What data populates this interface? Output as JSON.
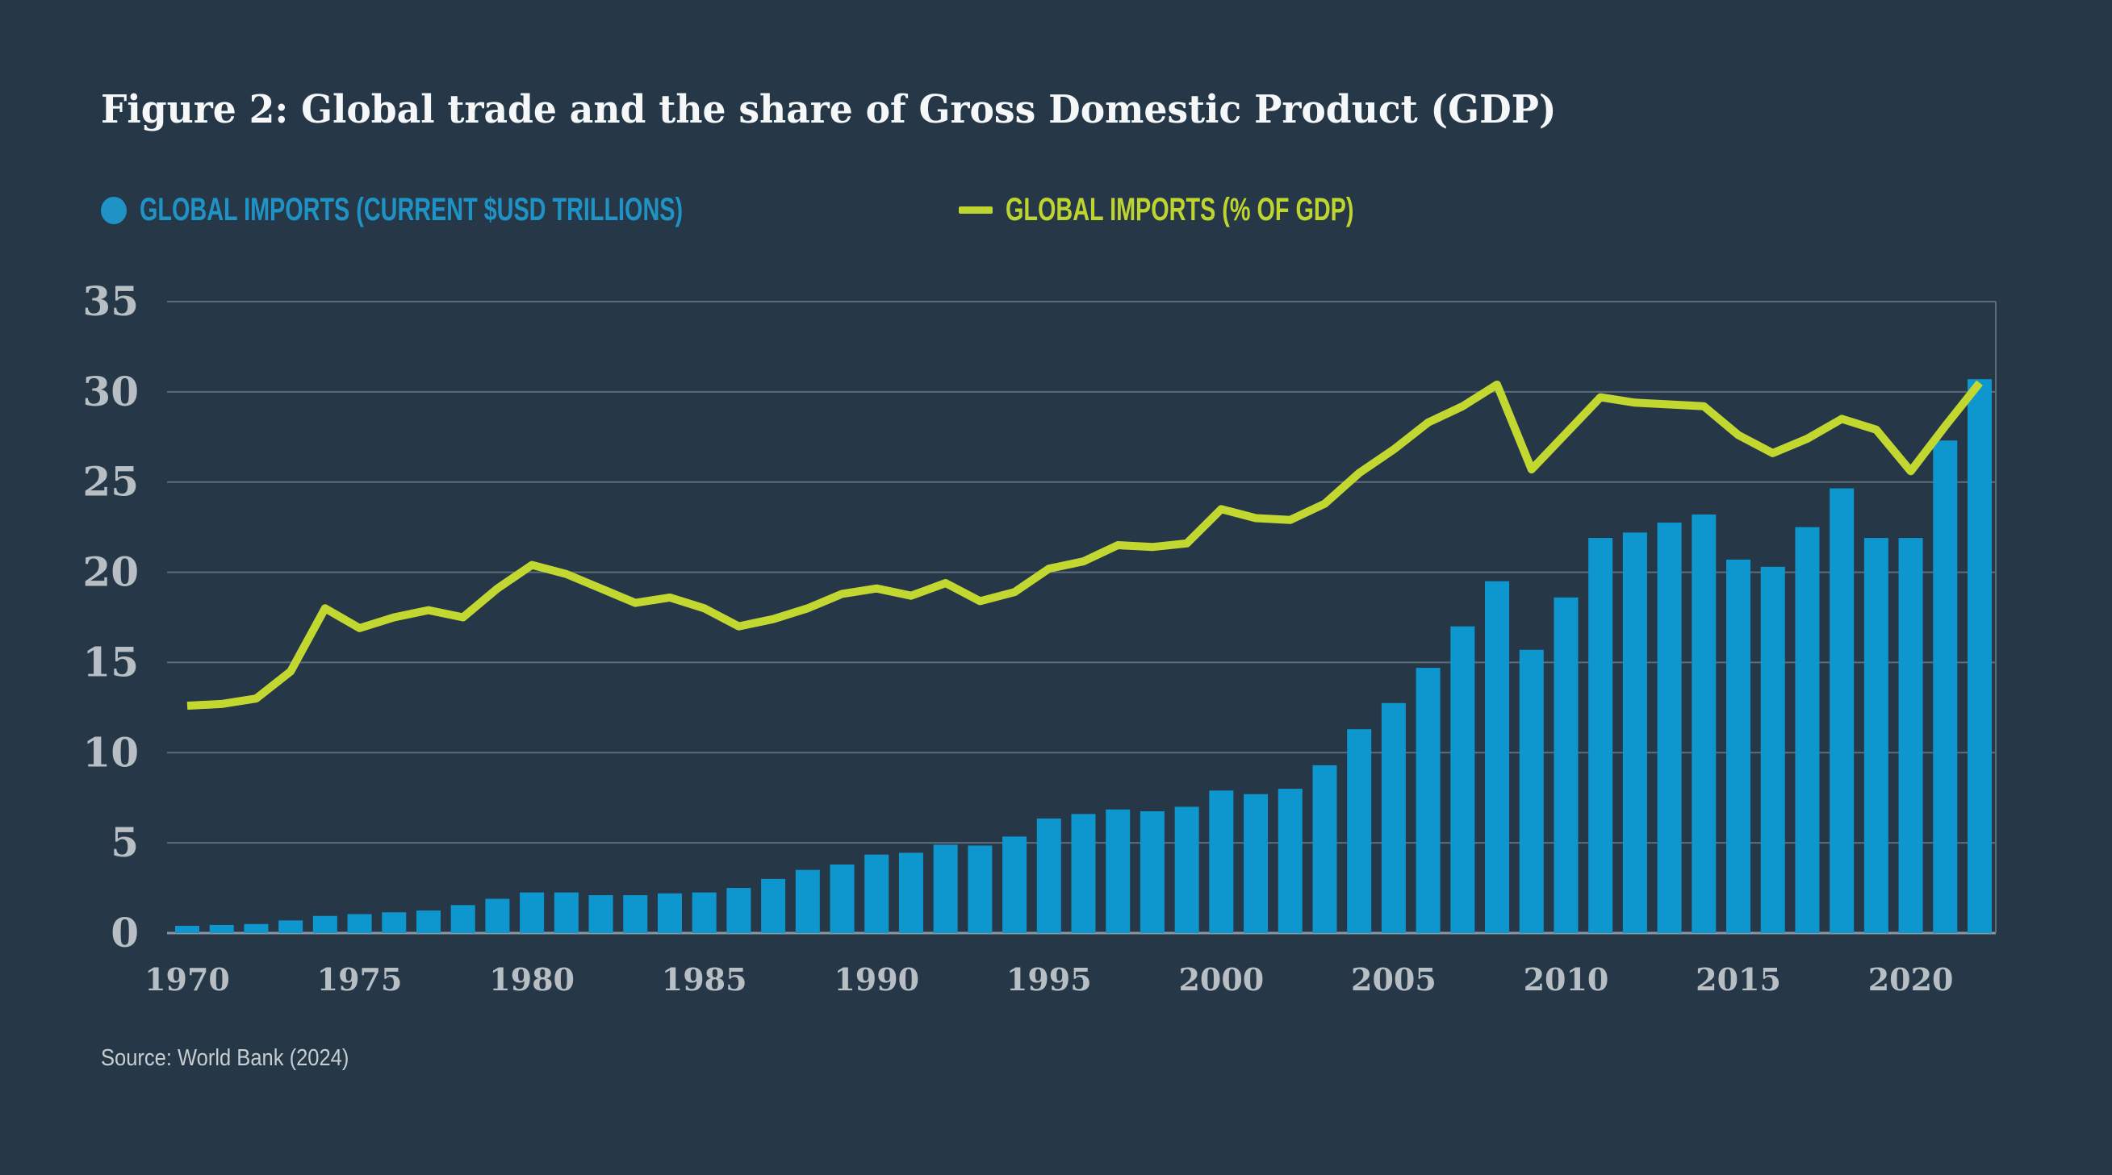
{
  "title": "Figure 2: Global trade and the share of Gross Domestic Product (GDP)",
  "legend": {
    "items": [
      {
        "label": "GLOBAL IMPORTS (CURRENT $USD TRILLIONS)",
        "marker": "dot-icon",
        "color": "#1f93c5"
      },
      {
        "label": "GLOBAL IMPORTS (% OF GDP)",
        "marker": "dash-icon",
        "color": "#bfd52f"
      }
    ]
  },
  "source": "Source: World Bank (2024)",
  "colors": {
    "background": "#263848",
    "bar": "#0e97cf",
    "line": "#c2d831",
    "grid": "#5d6c78",
    "axis_baseline": "#8b96a0",
    "tick_text": "#b8bfc4",
    "title_text": "#f5f7f8",
    "source_text": "#c8cdd1"
  },
  "chart_data": {
    "type": "bar",
    "title": "Figure 2: Global trade and the share of Gross Domestic Product (GDP)",
    "xlabel": "",
    "ylabel": "",
    "ylim": [
      0,
      35
    ],
    "yticks": [
      0,
      5,
      10,
      15,
      20,
      25,
      30,
      35
    ],
    "xticks": [
      1970,
      1975,
      1980,
      1985,
      1990,
      1995,
      2000,
      2005,
      2010,
      2015,
      2020
    ],
    "grid": true,
    "legend_position": "top-left",
    "x": [
      1970,
      1971,
      1972,
      1973,
      1974,
      1975,
      1976,
      1977,
      1978,
      1979,
      1980,
      1981,
      1982,
      1983,
      1984,
      1985,
      1986,
      1987,
      1988,
      1989,
      1990,
      1991,
      1992,
      1993,
      1994,
      1995,
      1996,
      1997,
      1998,
      1999,
      2000,
      2001,
      2002,
      2003,
      2004,
      2005,
      2006,
      2007,
      2008,
      2009,
      2010,
      2011,
      2012,
      2013,
      2014,
      2015,
      2016,
      2017,
      2018,
      2019,
      2020,
      2021,
      2022
    ],
    "series": [
      {
        "name": "Global imports (current $USD trillions)",
        "type": "bar",
        "color": "#0e97cf",
        "values": [
          0.4,
          0.45,
          0.5,
          0.7,
          0.95,
          1.05,
          1.15,
          1.25,
          1.55,
          1.9,
          2.25,
          2.25,
          2.1,
          2.1,
          2.2,
          2.25,
          2.5,
          3.0,
          3.5,
          3.8,
          4.35,
          4.45,
          4.9,
          4.85,
          5.35,
          6.35,
          6.6,
          6.85,
          6.75,
          7.0,
          7.9,
          7.7,
          8.0,
          9.3,
          11.3,
          12.75,
          14.7,
          17.0,
          19.5,
          15.7,
          18.6,
          21.9,
          22.2,
          22.75,
          23.2,
          20.7,
          20.3,
          22.5,
          24.65,
          21.9,
          21.9,
          27.3,
          30.7
        ]
      },
      {
        "name": "Global imports (% of GDP)",
        "type": "line",
        "color": "#c2d831",
        "values": [
          12.6,
          12.7,
          13.0,
          14.5,
          18.0,
          16.9,
          17.5,
          17.9,
          17.5,
          19.1,
          20.4,
          19.9,
          19.1,
          18.3,
          18.6,
          18.0,
          17.0,
          17.4,
          18.0,
          18.8,
          19.1,
          18.7,
          19.4,
          18.4,
          18.9,
          20.2,
          20.6,
          21.5,
          21.4,
          21.6,
          23.5,
          23.0,
          22.9,
          23.8,
          25.5,
          26.8,
          28.3,
          29.2,
          30.4,
          25.7,
          27.7,
          29.7,
          29.4,
          29.3,
          29.2,
          27.6,
          26.6,
          27.4,
          28.5,
          27.9,
          25.6,
          28.1,
          30.5
        ]
      }
    ]
  }
}
